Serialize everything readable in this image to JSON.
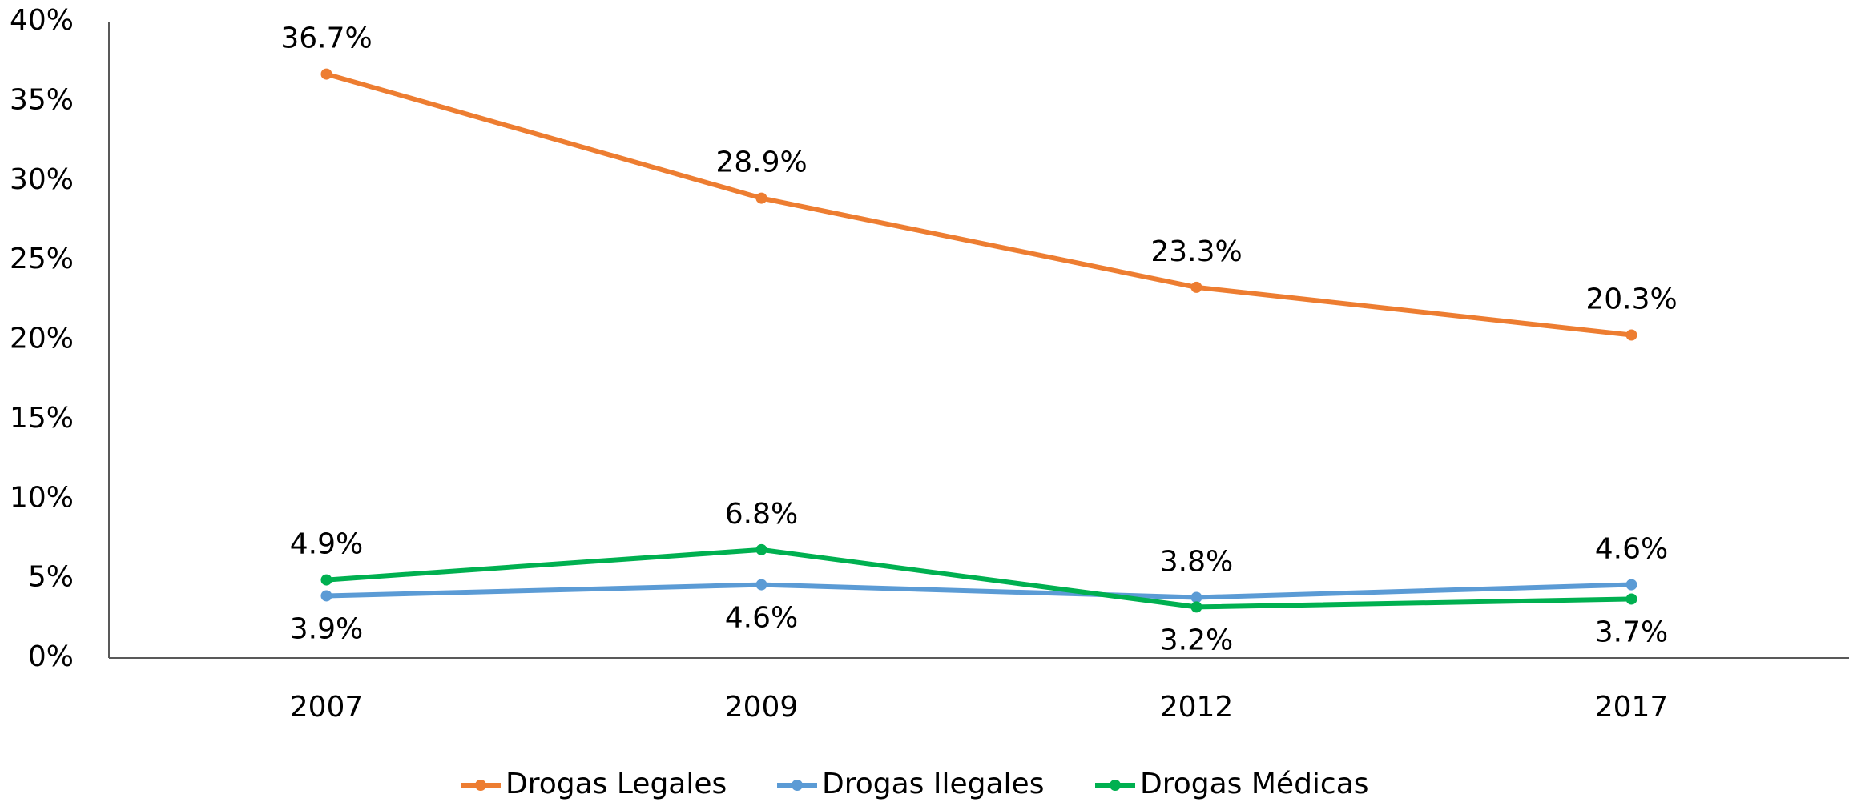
{
  "chart_data": {
    "type": "line",
    "categories": [
      "2007",
      "2009",
      "2012",
      "2017"
    ],
    "series": [
      {
        "name": "Drogas Legales",
        "color": "#ed7d31",
        "values": [
          36.7,
          28.9,
          23.3,
          20.3
        ],
        "value_labels": [
          "36.7%",
          "28.9%",
          "23.3%",
          "20.3%"
        ]
      },
      {
        "name": "Drogas Ilegales",
        "color": "#5b9bd5",
        "values": [
          3.9,
          4.6,
          3.8,
          4.6
        ],
        "value_labels": [
          "3.9%",
          "4.6%",
          "3.8%",
          "4.6%"
        ]
      },
      {
        "name": "Drogas Médicas",
        "color": "#00b050",
        "values": [
          4.9,
          6.8,
          3.2,
          3.7
        ],
        "value_labels": [
          "4.9%",
          "6.8%",
          "3.2%",
          "3.7%"
        ]
      }
    ],
    "ylim": [
      0,
      40
    ],
    "yticks": [
      {
        "value": 0,
        "label": "0%"
      },
      {
        "value": 5,
        "label": "5%"
      },
      {
        "value": 10,
        "label": "10%"
      },
      {
        "value": 15,
        "label": "15%"
      },
      {
        "value": 20,
        "label": "20%"
      },
      {
        "value": 25,
        "label": "25%"
      },
      {
        "value": 30,
        "label": "30%"
      },
      {
        "value": 35,
        "label": "35%"
      },
      {
        "value": 40,
        "label": "40%"
      }
    ],
    "grid": false,
    "legend": "bottom"
  }
}
